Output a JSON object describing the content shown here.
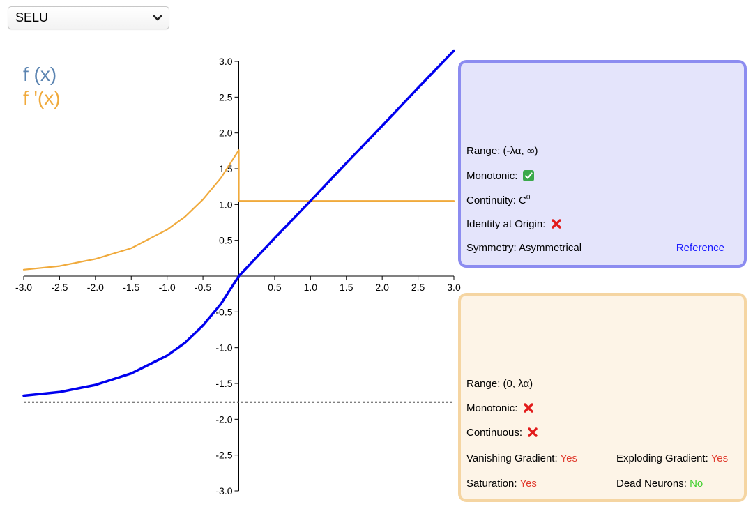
{
  "selector": {
    "value": "SELU",
    "icon": "chevron-down-icon"
  },
  "legend": {
    "f": "f (x)",
    "fprime": "f '(x)",
    "f_color": "#5b84b1",
    "fprime_color": "#f0aa3c"
  },
  "function_panel": {
    "range_label": "Range: ",
    "range_value": "(-λα, ∞)",
    "monotonic_label": "Monotonic: ",
    "monotonic": true,
    "continuity_label": "Continuity: ",
    "continuity_value": "C",
    "continuity_sup": "0",
    "identity_label": "Identity at Origin: ",
    "identity": false,
    "symmetry_label": "Symmetry: ",
    "symmetry_value": "Asymmetrical",
    "reference_label": "Reference"
  },
  "derivative_panel": {
    "range_label": "Range: ",
    "range_value": "(0, λα)",
    "monotonic_label": "Monotonic: ",
    "monotonic": false,
    "continuous_label": "Continuous: ",
    "continuous": false,
    "vanishing_label": "Vanishing Gradient: ",
    "vanishing_value": "Yes",
    "exploding_label": "Exploding Gradient: ",
    "exploding_value": "Yes",
    "saturation_label": "Saturation: ",
    "saturation_value": "Yes",
    "dead_label": "Dead Neurons: ",
    "dead_value": "No"
  },
  "chart_data": {
    "type": "line",
    "xlim": [
      -3.0,
      3.0
    ],
    "ylim": [
      -3.0,
      3.0
    ],
    "x_ticks": [
      "-3.0",
      "-2.5",
      "-2.0",
      "-1.5",
      "-1.0",
      "-0.5",
      "0.5",
      "1.0",
      "1.5",
      "2.0",
      "2.5",
      "3.0"
    ],
    "y_ticks": [
      "3.0",
      "2.5",
      "2.0",
      "1.5",
      "1.0",
      "0.5",
      "-0.5",
      "-1.0",
      "-1.5",
      "-2.0",
      "-2.5",
      "-3.0"
    ],
    "x_tick_values": [
      -3.0,
      -2.5,
      -2.0,
      -1.5,
      -1.0,
      -0.5,
      0.5,
      1.0,
      1.5,
      2.0,
      2.5,
      3.0
    ],
    "y_tick_values": [
      3.0,
      2.5,
      2.0,
      1.5,
      1.0,
      0.5,
      -0.5,
      -1.0,
      -1.5,
      -2.0,
      -2.5,
      -3.0
    ],
    "series": [
      {
        "name": "f (x)",
        "color": "#0000ee",
        "x": [
          -3.0,
          -2.5,
          -2.0,
          -1.5,
          -1.0,
          -0.75,
          -0.5,
          -0.25,
          0.0,
          0.5,
          1.0,
          1.5,
          2.0,
          2.5,
          3.0,
          3.0
        ],
        "y": [
          -1.67,
          -1.62,
          -1.52,
          -1.36,
          -1.11,
          -0.93,
          -0.69,
          -0.39,
          0.0,
          0.53,
          1.05,
          1.58,
          2.1,
          2.63,
          3.15,
          3.15
        ]
      },
      {
        "name": "f '(x)",
        "color": "#f0aa3c",
        "x": [
          -3.0,
          -2.5,
          -2.0,
          -1.5,
          -1.0,
          -0.75,
          -0.5,
          -0.25,
          0.0,
          0.0,
          3.0
        ],
        "y": [
          0.09,
          0.14,
          0.24,
          0.39,
          0.65,
          0.83,
          1.07,
          1.37,
          1.76,
          1.05,
          1.05
        ]
      }
    ],
    "asymptote": {
      "y": -1.76,
      "style": "dashed",
      "color": "#555555"
    }
  }
}
